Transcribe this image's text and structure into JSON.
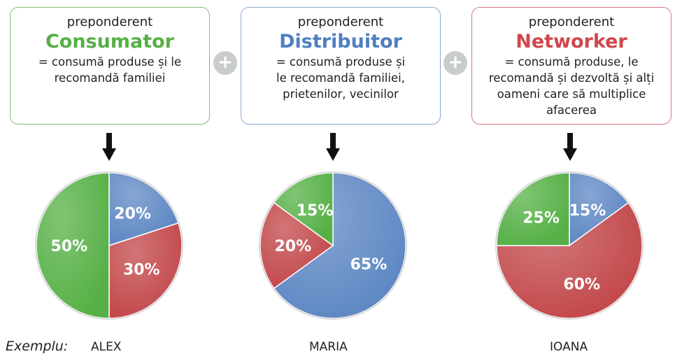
{
  "colors": {
    "green": "#56b046",
    "blue": "#5d87c3",
    "red": "#c2474a",
    "plus": "#c9cdc9"
  },
  "plus_symbol": "+",
  "example_label": "Exemplu:",
  "cards": [
    {
      "pre": "preponderent",
      "role": "Consumator",
      "role_color": "#56b046",
      "desc": "= consumă produse și le recomandă familiei"
    },
    {
      "pre": "preponderent",
      "role": "Distribuitor",
      "role_color": "#4f7fc0",
      "desc": "= consumă produse și le recomandă familiei, prietenilor, vecinilor"
    },
    {
      "pre": "preponderent",
      "role": "Networker",
      "role_color": "#d0474b",
      "desc": "= consumă produse, le recomandă și dezvoltă și alți oameni care să multiplice afacerea"
    }
  ],
  "chart_data": [
    {
      "type": "pie",
      "name_label": "ALEX",
      "categories": [
        "Distribuitor",
        "Networker",
        "Consumator"
      ],
      "values": [
        20,
        30,
        50
      ],
      "labels": [
        "20%",
        "30%",
        "50%"
      ]
    },
    {
      "type": "pie",
      "name_label": "MARIA",
      "categories": [
        "Distribuitor",
        "Networker",
        "Consumator"
      ],
      "values": [
        65,
        20,
        15
      ],
      "labels": [
        "65%",
        "20%",
        "15%"
      ]
    },
    {
      "type": "pie",
      "name_label": "IOANA",
      "categories": [
        "Distribuitor",
        "Networker",
        "Consumator"
      ],
      "values": [
        15,
        60,
        25
      ],
      "labels": [
        "15%",
        "60%",
        "25%"
      ]
    }
  ]
}
